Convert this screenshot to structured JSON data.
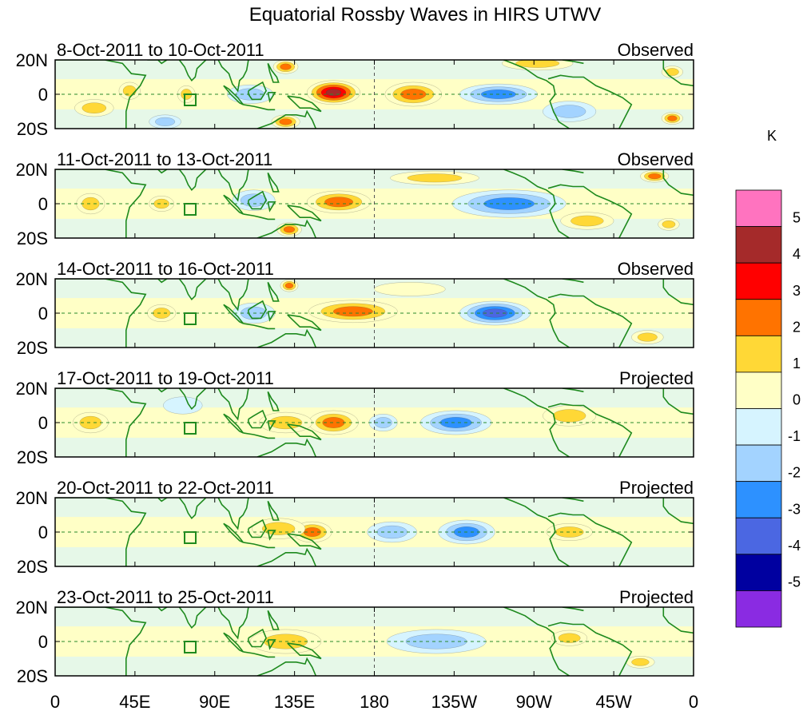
{
  "chart_data": {
    "type": "heatmap",
    "title": "Equatorial Rossby Waves in HIRS UTWV",
    "x_ticks": [
      "0",
      "45E",
      "90E",
      "135E",
      "180",
      "135W",
      "90W",
      "45W",
      "0"
    ],
    "y_ticks": [
      "20N",
      "0",
      "20S"
    ],
    "xlim": [
      0,
      360
    ],
    "ylim": [
      -20,
      20
    ],
    "panels": [
      {
        "date_range": "8-Oct-2011 to 10-Oct-2011",
        "status": "Observed",
        "features": [
          {
            "lon": 157,
            "lat": 1,
            "value": 4.2,
            "width_deg": 30,
            "height_deg": 14
          },
          {
            "lon": 202,
            "lat": 0,
            "value": 2.4,
            "width_deg": 32,
            "height_deg": 14
          },
          {
            "lon": 110,
            "lat": 0,
            "value": -1.8,
            "width_deg": 26,
            "height_deg": 11
          },
          {
            "lon": 250,
            "lat": 0,
            "value": -2.4,
            "width_deg": 44,
            "height_deg": 12
          },
          {
            "lon": 130,
            "lat": 16,
            "value": 2.2,
            "width_deg": 14,
            "height_deg": 8
          },
          {
            "lon": 130,
            "lat": -16,
            "value": 2.4,
            "width_deg": 16,
            "height_deg": 8
          },
          {
            "lon": 74,
            "lat": 0,
            "value": 1.4,
            "width_deg": 10,
            "height_deg": 10
          },
          {
            "lon": 42,
            "lat": 2,
            "value": 1.2,
            "width_deg": 12,
            "height_deg": 10
          },
          {
            "lon": 290,
            "lat": -10,
            "value": -1.6,
            "width_deg": 30,
            "height_deg": 12
          },
          {
            "lon": 348,
            "lat": -14,
            "value": 2.2,
            "width_deg": 12,
            "height_deg": 7
          },
          {
            "lon": 348,
            "lat": 13,
            "value": 2.0,
            "width_deg": 12,
            "height_deg": 7
          },
          {
            "lon": 272,
            "lat": 18,
            "value": 1.3,
            "width_deg": 40,
            "height_deg": 8
          },
          {
            "lon": 62,
            "lat": -16,
            "value": -1.5,
            "width_deg": 18,
            "height_deg": 8
          },
          {
            "lon": 22,
            "lat": -8,
            "value": 1.1,
            "width_deg": 22,
            "height_deg": 10
          }
        ]
      },
      {
        "date_range": "11-Oct-2011 to 13-Oct-2011",
        "status": "Observed",
        "features": [
          {
            "lon": 160,
            "lat": 1,
            "value": 2.5,
            "width_deg": 36,
            "height_deg": 13
          },
          {
            "lon": 256,
            "lat": 0,
            "value": -2.6,
            "width_deg": 64,
            "height_deg": 16
          },
          {
            "lon": 112,
            "lat": 2,
            "value": -1.6,
            "width_deg": 24,
            "height_deg": 12
          },
          {
            "lon": 132,
            "lat": -15,
            "value": 2.2,
            "width_deg": 14,
            "height_deg": 8
          },
          {
            "lon": 346,
            "lat": -12,
            "value": 2.0,
            "width_deg": 12,
            "height_deg": 7
          },
          {
            "lon": 338,
            "lat": 16,
            "value": 2.1,
            "width_deg": 16,
            "height_deg": 7
          },
          {
            "lon": 60,
            "lat": 0,
            "value": 1.2,
            "width_deg": 14,
            "height_deg": 9
          },
          {
            "lon": 20,
            "lat": 0,
            "value": 1.2,
            "width_deg": 16,
            "height_deg": 12
          },
          {
            "lon": 300,
            "lat": -10,
            "value": 1.1,
            "width_deg": 30,
            "height_deg": 10
          },
          {
            "lon": 214,
            "lat": 15,
            "value": 1.1,
            "width_deg": 50,
            "height_deg": 8
          }
        ]
      },
      {
        "date_range": "14-Oct-2011 to 16-Oct-2011",
        "status": "Observed",
        "features": [
          {
            "lon": 168,
            "lat": 1,
            "value": 2.4,
            "width_deg": 50,
            "height_deg": 13
          },
          {
            "lon": 248,
            "lat": 0,
            "value": -3.5,
            "width_deg": 40,
            "height_deg": 14
          },
          {
            "lon": 112,
            "lat": 0,
            "value": -1.4,
            "width_deg": 24,
            "height_deg": 12
          },
          {
            "lon": 132,
            "lat": 16,
            "value": 2.1,
            "width_deg": 10,
            "height_deg": 7
          },
          {
            "lon": 60,
            "lat": 0,
            "value": 1.2,
            "width_deg": 16,
            "height_deg": 10
          },
          {
            "lon": 334,
            "lat": -14,
            "value": 1.3,
            "width_deg": 18,
            "height_deg": 8
          },
          {
            "lon": 200,
            "lat": 14,
            "value": 1.0,
            "width_deg": 40,
            "height_deg": 8
          }
        ]
      },
      {
        "date_range": "17-Oct-2011 to 19-Oct-2011",
        "status": "Projected",
        "features": [
          {
            "lon": 157,
            "lat": 0,
            "value": 2.3,
            "width_deg": 28,
            "height_deg": 14
          },
          {
            "lon": 226,
            "lat": 0,
            "value": -2.3,
            "width_deg": 40,
            "height_deg": 14
          },
          {
            "lon": 185,
            "lat": 0,
            "value": -1.2,
            "width_deg": 16,
            "height_deg": 10
          },
          {
            "lon": 130,
            "lat": 0,
            "value": 1.3,
            "width_deg": 30,
            "height_deg": 12
          },
          {
            "lon": 290,
            "lat": 4,
            "value": 1.2,
            "width_deg": 30,
            "height_deg": 12
          },
          {
            "lon": 72,
            "lat": 10,
            "value": -1.0,
            "width_deg": 22,
            "height_deg": 10
          },
          {
            "lon": 20,
            "lat": 0,
            "value": 1.1,
            "width_deg": 20,
            "height_deg": 12
          }
        ]
      },
      {
        "date_range": "20-Oct-2011 to 22-Oct-2011",
        "status": "Projected",
        "features": [
          {
            "lon": 145,
            "lat": 0,
            "value": 2.2,
            "width_deg": 22,
            "height_deg": 12
          },
          {
            "lon": 232,
            "lat": 0,
            "value": -2.5,
            "width_deg": 32,
            "height_deg": 14
          },
          {
            "lon": 190,
            "lat": 0,
            "value": -1.2,
            "width_deg": 28,
            "height_deg": 12
          },
          {
            "lon": 126,
            "lat": 2,
            "value": 1.2,
            "width_deg": 30,
            "height_deg": 12
          },
          {
            "lon": 290,
            "lat": 0,
            "value": 1.1,
            "width_deg": 26,
            "height_deg": 10
          }
        ]
      },
      {
        "date_range": "23-Oct-2011 to 25-Oct-2011",
        "status": "Projected",
        "features": [
          {
            "lon": 130,
            "lat": 0,
            "value": 1.5,
            "width_deg": 40,
            "height_deg": 14
          },
          {
            "lon": 215,
            "lat": 0,
            "value": -1.6,
            "width_deg": 56,
            "height_deg": 14
          },
          {
            "lon": 330,
            "lat": -12,
            "value": 1.2,
            "width_deg": 16,
            "height_deg": 7
          },
          {
            "lon": 290,
            "lat": 2,
            "value": 1.1,
            "width_deg": 20,
            "height_deg": 9
          }
        ]
      }
    ],
    "colorbar": {
      "unit": "K",
      "levels": [
        "5",
        "4",
        "3",
        "2",
        "1",
        "0",
        "-1",
        "-2",
        "-3",
        "-4",
        "-5"
      ],
      "colors": [
        "#ff73bf",
        "#a52a2a",
        "#ff0000",
        "#ff7300",
        "#ffd836",
        "#ffffc6",
        "#d6f4ff",
        "#a3d3ff",
        "#2d91ff",
        "#4b67e2",
        "#0000a0",
        "#8a2be2"
      ]
    }
  }
}
